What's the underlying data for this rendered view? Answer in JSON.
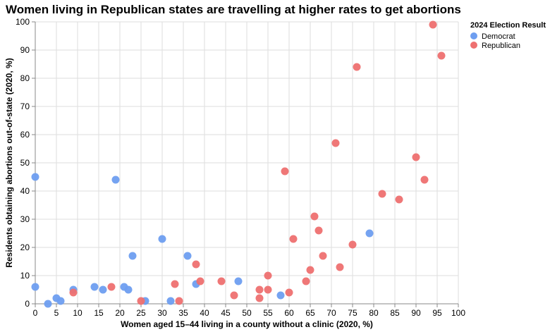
{
  "chart_data": {
    "type": "scatter",
    "title": "Women living in Republican states are travelling at higher rates to get abortions",
    "xlabel": "Women aged 15–44 living in a county without a clinic (2020, %)",
    "ylabel": "Residents obtaining abortions out-of-state (2020, %)",
    "xlim": [
      0,
      100
    ],
    "ylim": [
      0,
      100
    ],
    "x_ticks": [
      0,
      5,
      10,
      15,
      20,
      25,
      30,
      35,
      40,
      45,
      50,
      55,
      60,
      65,
      70,
      75,
      80,
      85,
      90,
      95,
      100
    ],
    "y_ticks": [
      0,
      10,
      20,
      30,
      40,
      50,
      60,
      70,
      80,
      90,
      100
    ],
    "grid": true,
    "legend": {
      "title": "2024 Election Result",
      "placement": "top-right"
    },
    "series": [
      {
        "name": "Democrat",
        "color": "#6e9ef0",
        "points": [
          {
            "x": 0,
            "y": 45
          },
          {
            "x": 19,
            "y": 44
          },
          {
            "x": 0,
            "y": 6
          },
          {
            "x": 3,
            "y": 0
          },
          {
            "x": 5,
            "y": 2
          },
          {
            "x": 6,
            "y": 1
          },
          {
            "x": 9,
            "y": 5
          },
          {
            "x": 14,
            "y": 6
          },
          {
            "x": 16,
            "y": 5
          },
          {
            "x": 21,
            "y": 6
          },
          {
            "x": 22,
            "y": 5
          },
          {
            "x": 23,
            "y": 17
          },
          {
            "x": 26,
            "y": 1
          },
          {
            "x": 30,
            "y": 23
          },
          {
            "x": 32,
            "y": 1
          },
          {
            "x": 36,
            "y": 17
          },
          {
            "x": 38,
            "y": 7
          },
          {
            "x": 48,
            "y": 8
          },
          {
            "x": 58,
            "y": 3
          },
          {
            "x": 79,
            "y": 25
          }
        ]
      },
      {
        "name": "Republican",
        "color": "#ee7070",
        "points": [
          {
            "x": 9,
            "y": 4
          },
          {
            "x": 18,
            "y": 6
          },
          {
            "x": 25,
            "y": 1
          },
          {
            "x": 33,
            "y": 7
          },
          {
            "x": 34,
            "y": 1
          },
          {
            "x": 38,
            "y": 14
          },
          {
            "x": 39,
            "y": 8
          },
          {
            "x": 44,
            "y": 8
          },
          {
            "x": 47,
            "y": 3
          },
          {
            "x": 53,
            "y": 5
          },
          {
            "x": 53,
            "y": 2
          },
          {
            "x": 55,
            "y": 10
          },
          {
            "x": 55,
            "y": 5
          },
          {
            "x": 59,
            "y": 47
          },
          {
            "x": 60,
            "y": 4
          },
          {
            "x": 61,
            "y": 23
          },
          {
            "x": 64,
            "y": 8
          },
          {
            "x": 65,
            "y": 12
          },
          {
            "x": 66,
            "y": 31
          },
          {
            "x": 67,
            "y": 26
          },
          {
            "x": 68,
            "y": 17
          },
          {
            "x": 71,
            "y": 57
          },
          {
            "x": 72,
            "y": 13
          },
          {
            "x": 75,
            "y": 21
          },
          {
            "x": 76,
            "y": 84
          },
          {
            "x": 82,
            "y": 39
          },
          {
            "x": 86,
            "y": 37
          },
          {
            "x": 90,
            "y": 52
          },
          {
            "x": 92,
            "y": 44
          },
          {
            "x": 94,
            "y": 99
          },
          {
            "x": 96,
            "y": 88
          }
        ]
      }
    ]
  }
}
